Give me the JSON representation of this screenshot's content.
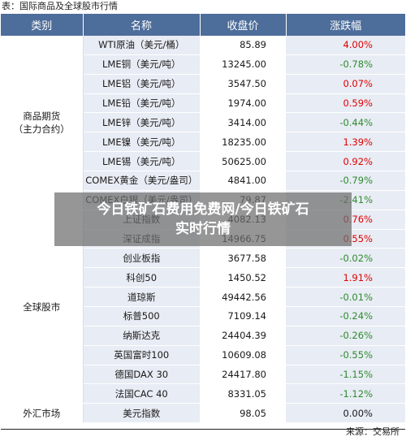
{
  "caption": "表：国际商品及全球股市行情",
  "headers": [
    "类别",
    "名称",
    "收盘价",
    "涨跌幅"
  ],
  "categories": {
    "commodity_line1": "商品期货",
    "commodity_line2": "（主力合约）",
    "stocks": "全球股市",
    "fx": "外汇市场"
  },
  "rows": [
    {
      "name": "WTI原油（美元/桶）",
      "price": "85.89",
      "change": "4.00%",
      "dir": "up"
    },
    {
      "name": "LME铜（美元/吨）",
      "price": "13245.00",
      "change": "-0.78%",
      "dir": "down"
    },
    {
      "name": "LME铝（美元/吨）",
      "price": "3547.50",
      "change": "0.07%",
      "dir": "up"
    },
    {
      "name": "LME铅（美元/吨）",
      "price": "1974.00",
      "change": "0.59%",
      "dir": "up"
    },
    {
      "name": "LME锌（美元/吨）",
      "price": "3414.00",
      "change": "-0.44%",
      "dir": "down"
    },
    {
      "name": "LME镍（美元/吨）",
      "price": "18235.00",
      "change": "1.39%",
      "dir": "up"
    },
    {
      "name": "LME锡（美元/吨）",
      "price": "50625.00",
      "change": "0.92%",
      "dir": "up"
    },
    {
      "name": "COMEX黄金（美元/盎司）",
      "price": "4841.00",
      "change": "-0.79%",
      "dir": "down"
    },
    {
      "name": "COMEX白银（美元/盎司）",
      "price": "79.87",
      "change": "-2.41%",
      "dir": "down"
    },
    {
      "name": "上证指数",
      "price": "4082.13",
      "change": "0.76%",
      "dir": "up"
    },
    {
      "name": "深证成指",
      "price": "14966.75",
      "change": "0.55%",
      "dir": "up"
    },
    {
      "name": "创业板指",
      "price": "3677.58",
      "change": "-0.02%",
      "dir": "down"
    },
    {
      "name": "科创50",
      "price": "1450.52",
      "change": "1.91%",
      "dir": "up"
    },
    {
      "name": "道琼斯",
      "price": "49442.56",
      "change": "-0.01%",
      "dir": "down"
    },
    {
      "name": "标普500",
      "price": "7109.14",
      "change": "-0.24%",
      "dir": "down"
    },
    {
      "name": "纳斯达克",
      "price": "24404.39",
      "change": "-0.26%",
      "dir": "down"
    },
    {
      "name": "英国富时100",
      "price": "10609.08",
      "change": "-0.55%",
      "dir": "down"
    },
    {
      "name": "德国DAX 30",
      "price": "24417.80",
      "change": "-1.15%",
      "dir": "down"
    },
    {
      "name": "法国CAC 40",
      "price": "8331.05",
      "change": "-1.12%",
      "dir": "down"
    },
    {
      "name": "美元指数",
      "price": "98.05",
      "change": "0.00%",
      "dir": "flat"
    }
  ],
  "source": "来源：交易所",
  "overlay": {
    "line1": "今日铁矿石费用免费网/今日铁矿石",
    "line2": "实时行情"
  },
  "colors": {
    "header_bg": "#4d6d9a",
    "up": "#e00000",
    "down": "#2e8b2e",
    "stripe": "#e8ecf4"
  }
}
